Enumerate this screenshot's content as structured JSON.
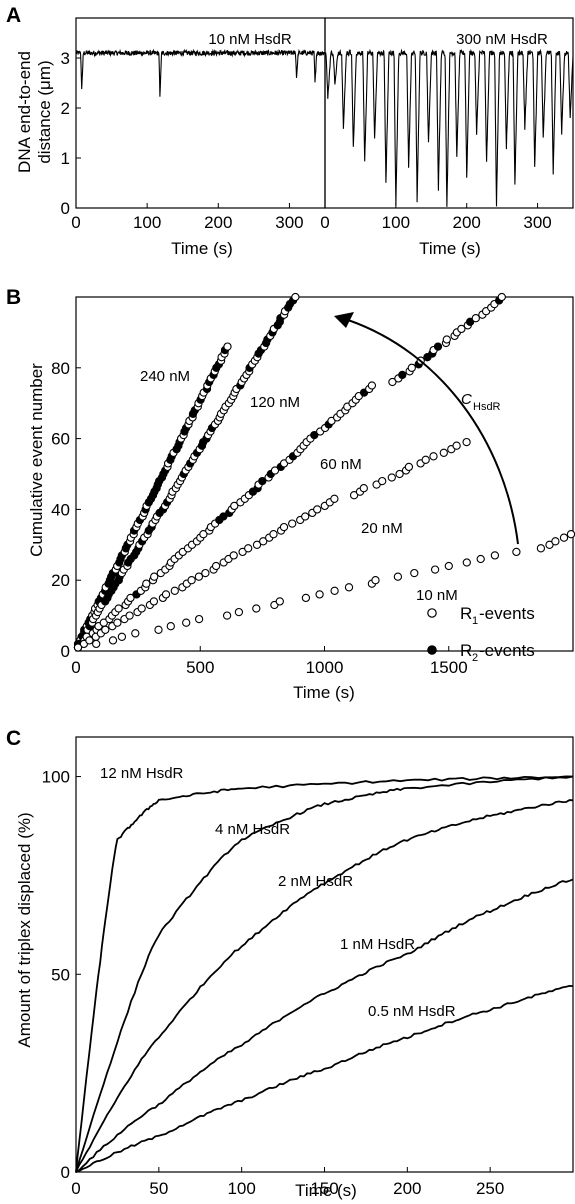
{
  "panels": {
    "a": {
      "label": "A",
      "ylabel_1": "DNA end-to-end",
      "ylabel_2": "distance (μm)",
      "xlabel": "Time (s)",
      "left_title": "10 nM HsdR",
      "right_title": "300 nM HsdR"
    },
    "b": {
      "label": "B",
      "ylabel": "Cumulative event number",
      "xlabel": "Time (s)",
      "arrow_label_main": "C",
      "arrow_label_sub": "HsdR",
      "legend": [
        {
          "marker": "open",
          "main": "R",
          "sub": "1",
          "tail": "-events"
        },
        {
          "marker": "filled",
          "main": "R",
          "sub": "2",
          "tail": "-events"
        }
      ]
    },
    "c": {
      "label": "C",
      "ylabel": "Amount of triplex displaced (%)",
      "xlabel": "Time (s)"
    }
  },
  "chart_data": [
    {
      "id": "A-left",
      "type": "line",
      "title": "10 nM HsdR",
      "xlabel": "Time (s)",
      "ylabel": "DNA end-to-end distance (μm)",
      "xlim": [
        0,
        350
      ],
      "ylim": [
        0,
        3.8
      ],
      "x_ticks": [
        0,
        100,
        200,
        300
      ],
      "y_ticks": [
        0,
        1,
        2,
        3
      ],
      "baseline": 3.1,
      "dips": [
        {
          "x": 8,
          "min": 2.35
        },
        {
          "x": 118,
          "min": 2.25
        },
        {
          "x": 310,
          "min": 2.6
        },
        {
          "x": 336,
          "min": 2.5
        }
      ]
    },
    {
      "id": "A-right",
      "type": "line",
      "title": "300 nM HsdR",
      "xlabel": "Time (s)",
      "xlim": [
        0,
        350
      ],
      "ylim": [
        0,
        3.8
      ],
      "x_ticks": [
        0,
        100,
        200,
        300
      ],
      "baseline": 3.1,
      "dips": [
        {
          "x": 4,
          "min": 2.2
        },
        {
          "x": 14,
          "min": 2.5
        },
        {
          "x": 26,
          "min": 1.6
        },
        {
          "x": 40,
          "min": 1.2
        },
        {
          "x": 56,
          "min": 0.9
        },
        {
          "x": 70,
          "min": 1.4
        },
        {
          "x": 86,
          "min": 0.5
        },
        {
          "x": 100,
          "min": 0.05
        },
        {
          "x": 118,
          "min": 0.8
        },
        {
          "x": 130,
          "min": 0.15
        },
        {
          "x": 146,
          "min": 1.3
        },
        {
          "x": 160,
          "min": 0.35
        },
        {
          "x": 172,
          "min": 0.0
        },
        {
          "x": 186,
          "min": 1.0
        },
        {
          "x": 200,
          "min": 0.6
        },
        {
          "x": 214,
          "min": 1.5
        },
        {
          "x": 228,
          "min": 0.9
        },
        {
          "x": 242,
          "min": 0.05
        },
        {
          "x": 256,
          "min": 1.2
        },
        {
          "x": 268,
          "min": 0.5
        },
        {
          "x": 282,
          "min": 1.6
        },
        {
          "x": 296,
          "min": 0.8
        },
        {
          "x": 308,
          "min": 1.4
        },
        {
          "x": 322,
          "min": 0.7
        },
        {
          "x": 334,
          "min": 1.5
        },
        {
          "x": 346,
          "min": 1.8
        }
      ]
    },
    {
      "id": "B",
      "type": "scatter",
      "xlabel": "Time (s)",
      "ylabel": "Cumulative event number",
      "xlim": [
        0,
        2000
      ],
      "ylim": [
        0,
        100
      ],
      "x_ticks": [
        0,
        500,
        1000,
        1500
      ],
      "y_ticks": [
        0,
        20,
        40,
        60,
        80
      ],
      "series": [
        {
          "name": "240 nM",
          "max_event": 86,
          "end_time": 610,
          "filled_fraction": 0.6
        },
        {
          "name": "120 nM",
          "max_event": 100,
          "end_time": 880,
          "filled_fraction": 0.5
        },
        {
          "name": "60 nM",
          "max_event": 75,
          "end_time": 1190,
          "filled_fraction": 0.15
        },
        {
          "name": "60 nM",
          "max_event": 100,
          "end_time": 1720,
          "start_event": 76,
          "start_time": 1280,
          "filled_fraction": 0.15
        },
        {
          "name": "20 nM",
          "max_event": 43,
          "end_time": 1040,
          "filled_fraction": 0
        },
        {
          "name": "20 nM",
          "max_event": 59,
          "end_time": 1560,
          "start_event": 44,
          "start_time": 1110,
          "filled_fraction": 0
        },
        {
          "name": "10 nM",
          "max_event": 28,
          "end_time": 1750,
          "filled_fraction": 0
        },
        {
          "name": "10 nM",
          "max_event": 33,
          "end_time": 1995,
          "start_event": 29,
          "start_time": 1880,
          "filled_fraction": 0
        }
      ],
      "legend": [
        "R1-events",
        "R2-events"
      ]
    },
    {
      "id": "C",
      "type": "line",
      "xlabel": "Time (s)",
      "ylabel": "Amount of triplex displaced (%)",
      "xlim": [
        0,
        300
      ],
      "ylim": [
        0,
        110
      ],
      "x_ticks": [
        0,
        50,
        100,
        150,
        200,
        250
      ],
      "y_ticks": [
        0,
        50,
        100
      ],
      "series": [
        {
          "name": "12 nM HsdR",
          "values": [
            [
              0,
              0
            ],
            [
              25,
              84
            ],
            [
              50,
              94
            ],
            [
              100,
              97
            ],
            [
              200,
              99
            ],
            [
              300,
              100
            ]
          ]
        },
        {
          "name": "4 nM HsdR",
          "values": [
            [
              0,
              0
            ],
            [
              50,
              60
            ],
            [
              100,
              84
            ],
            [
              150,
              93
            ],
            [
              200,
              97
            ],
            [
              300,
              100
            ]
          ]
        },
        {
          "name": "2 nM HsdR",
          "values": [
            [
              0,
              0
            ],
            [
              50,
              34
            ],
            [
              100,
              57
            ],
            [
              150,
              73
            ],
            [
              200,
              84
            ],
            [
              250,
              90
            ],
            [
              300,
              94
            ]
          ]
        },
        {
          "name": "1 nM HsdR",
          "values": [
            [
              0,
              0
            ],
            [
              50,
              17
            ],
            [
              100,
              32
            ],
            [
              150,
              45
            ],
            [
              200,
              55
            ],
            [
              250,
              66
            ],
            [
              300,
              74
            ]
          ]
        },
        {
          "name": "0.5 nM HsdR",
          "values": [
            [
              0,
              0
            ],
            [
              50,
              9
            ],
            [
              100,
              18
            ],
            [
              150,
              26
            ],
            [
              200,
              34
            ],
            [
              250,
              41
            ],
            [
              300,
              47
            ]
          ]
        }
      ]
    }
  ]
}
